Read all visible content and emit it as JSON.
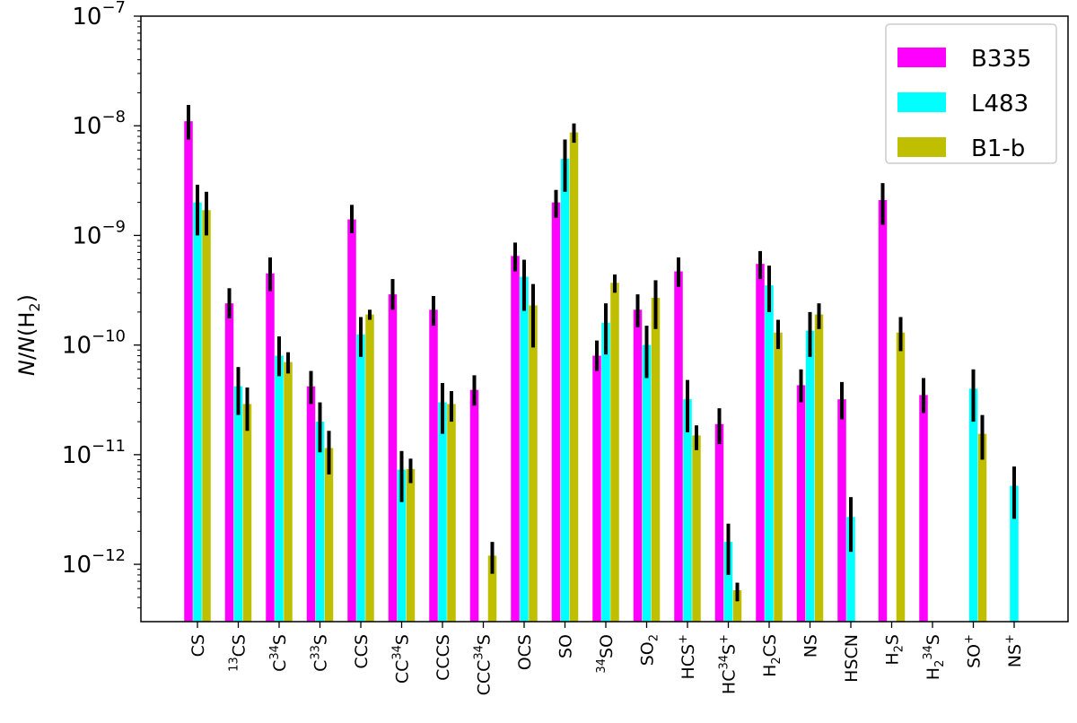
{
  "chart_data": {
    "type": "bar",
    "yscale": "log",
    "ylim": [
      3e-13,
      1e-07
    ],
    "ylabel_parts": [
      {
        "text": "N",
        "style": "italic"
      },
      {
        "text": "/"
      },
      {
        "text": "N",
        "style": "italic"
      },
      {
        "text": "(H"
      },
      {
        "text": "2",
        "shift": "sub"
      },
      {
        "text": ")"
      }
    ],
    "yticks": [
      {
        "value": 1e-12,
        "base": "10",
        "exp": "−12"
      },
      {
        "value": 1e-11,
        "base": "10",
        "exp": "−11"
      },
      {
        "value": 1e-10,
        "base": "10",
        "exp": "−10"
      },
      {
        "value": 1e-09,
        "base": "10",
        "exp": "−9"
      },
      {
        "value": 1e-08,
        "base": "10",
        "exp": "−8"
      },
      {
        "value": 1e-07,
        "base": "10",
        "exp": "−7"
      }
    ],
    "categories": [
      {
        "parts": [
          {
            "text": "CS"
          }
        ]
      },
      {
        "parts": [
          {
            "text": "13",
            "shift": "super"
          },
          {
            "text": "CS"
          }
        ]
      },
      {
        "parts": [
          {
            "text": "C"
          },
          {
            "text": "34",
            "shift": "super"
          },
          {
            "text": "S"
          }
        ]
      },
      {
        "parts": [
          {
            "text": "C"
          },
          {
            "text": "33",
            "shift": "super"
          },
          {
            "text": "S"
          }
        ]
      },
      {
        "parts": [
          {
            "text": "CCS"
          }
        ]
      },
      {
        "parts": [
          {
            "text": "CC"
          },
          {
            "text": "34",
            "shift": "super"
          },
          {
            "text": "S"
          }
        ]
      },
      {
        "parts": [
          {
            "text": "CCCS"
          }
        ]
      },
      {
        "parts": [
          {
            "text": "CCC"
          },
          {
            "text": "34",
            "shift": "super"
          },
          {
            "text": "S"
          }
        ]
      },
      {
        "parts": [
          {
            "text": "OCS"
          }
        ]
      },
      {
        "parts": [
          {
            "text": "SO"
          }
        ]
      },
      {
        "parts": [
          {
            "text": "34",
            "shift": "super"
          },
          {
            "text": "SO"
          }
        ]
      },
      {
        "parts": [
          {
            "text": "SO"
          },
          {
            "text": "2",
            "shift": "sub"
          }
        ]
      },
      {
        "parts": [
          {
            "text": "HCS"
          },
          {
            "text": "+",
            "shift": "super"
          }
        ]
      },
      {
        "parts": [
          {
            "text": "HC"
          },
          {
            "text": "34",
            "shift": "super"
          },
          {
            "text": "S"
          },
          {
            "text": "+",
            "shift": "super"
          }
        ]
      },
      {
        "parts": [
          {
            "text": "H"
          },
          {
            "text": "2",
            "shift": "sub"
          },
          {
            "text": "CS"
          }
        ]
      },
      {
        "parts": [
          {
            "text": "NS"
          }
        ]
      },
      {
        "parts": [
          {
            "text": "HSCN"
          }
        ]
      },
      {
        "parts": [
          {
            "text": "H"
          },
          {
            "text": "2",
            "shift": "sub"
          },
          {
            "text": "S"
          }
        ]
      },
      {
        "parts": [
          {
            "text": "H"
          },
          {
            "text": "2",
            "shift": "sub"
          },
          {
            "text": "34",
            "shift": "super"
          },
          {
            "text": "S"
          }
        ]
      },
      {
        "parts": [
          {
            "text": "SO"
          },
          {
            "text": "+",
            "shift": "super"
          }
        ]
      },
      {
        "parts": [
          {
            "text": "NS"
          },
          {
            "text": "+",
            "shift": "super"
          }
        ]
      }
    ],
    "series": [
      {
        "name": "B335",
        "color": "#ff00ff",
        "values": [
          1.1e-08,
          2.4e-10,
          4.5e-10,
          4.2e-11,
          1.4e-09,
          2.9e-10,
          2.1e-10,
          3.9e-11,
          6.5e-10,
          2e-09,
          8e-11,
          2.1e-10,
          4.7e-10,
          1.9e-11,
          5.5e-10,
          4.3e-11,
          3.2e-11,
          2.1e-09,
          3.5e-11,
          null,
          null
        ],
        "err_low": [
          7.5e-09,
          1.75e-10,
          3.1e-10,
          2.9e-11,
          1.05e-09,
          2.1e-10,
          1.5e-10,
          2.8e-11,
          4.7e-10,
          1.45e-09,
          5.8e-11,
          1.45e-10,
          3.4e-10,
          1.25e-11,
          4e-10,
          3e-11,
          2.1e-11,
          1.25e-09,
          2.4e-11,
          null,
          null
        ],
        "err_high": [
          1.55e-08,
          3.3e-10,
          6.3e-10,
          5.8e-11,
          1.9e-09,
          4e-10,
          2.8e-10,
          5.3e-11,
          8.6e-10,
          2.6e-09,
          1.1e-10,
          2.9e-10,
          6.3e-10,
          2.65e-11,
          7.2e-10,
          6e-11,
          4.6e-11,
          3e-09,
          5e-11,
          null,
          null
        ]
      },
      {
        "name": "L483",
        "color": "#00ffff",
        "values": [
          2e-09,
          4.2e-11,
          8e-11,
          2e-11,
          1.25e-10,
          7.3e-12,
          3e-11,
          null,
          4.2e-10,
          5e-09,
          1.6e-10,
          1e-10,
          3.2e-11,
          1.6e-12,
          3.5e-10,
          1.35e-10,
          2.7e-12,
          null,
          null,
          4e-11,
          5.2e-12
        ],
        "err_low": [
          1e-09,
          2.3e-11,
          5.2e-11,
          1.05e-11,
          7.8e-11,
          3.7e-12,
          1.55e-11,
          null,
          2.05e-10,
          2.5e-09,
          8.2e-11,
          5e-11,
          1.6e-11,
          8e-13,
          2e-10,
          7.8e-11,
          1.3e-12,
          null,
          null,
          2e-11,
          2.6e-12
        ],
        "err_high": [
          2.9e-09,
          6.3e-11,
          1.2e-10,
          3e-11,
          1.8e-10,
          1.08e-11,
          4.5e-11,
          null,
          6e-10,
          7.5e-09,
          2.4e-10,
          1.5e-10,
          4.8e-11,
          2.35e-12,
          5.3e-10,
          2e-10,
          4.1e-12,
          null,
          null,
          6e-11,
          7.8e-12
        ]
      },
      {
        "name": "B1-b",
        "color": "#bfbf00",
        "values": [
          1.7e-09,
          2.9e-11,
          7e-11,
          1.15e-11,
          1.9e-10,
          7.4e-12,
          2.9e-11,
          1.2e-12,
          2.3e-10,
          8.7e-09,
          3.7e-10,
          2.7e-10,
          1.5e-11,
          5.8e-13,
          1.3e-10,
          1.9e-10,
          null,
          1.3e-10,
          null,
          1.55e-11,
          null
        ],
        "err_low": [
          1e-09,
          1.65e-11,
          5.5e-11,
          6.6e-12,
          1.7e-10,
          5.5e-12,
          2e-11,
          8.2e-13,
          9.5e-11,
          7e-09,
          3e-10,
          1.4e-10,
          1.1e-11,
          4.6e-13,
          9.2e-11,
          1.4e-10,
          null,
          8.8e-11,
          null,
          9e-12,
          null
        ],
        "err_high": [
          2.5e-09,
          4.1e-11,
          8.6e-11,
          1.65e-11,
          2.1e-10,
          9.2e-12,
          3.8e-11,
          1.6e-12,
          3.6e-10,
          1.05e-08,
          4.4e-10,
          3.9e-10,
          1.85e-11,
          6.8e-13,
          1.7e-10,
          2.4e-10,
          null,
          1.8e-10,
          null,
          2.3e-11,
          null
        ]
      }
    ],
    "legend": {
      "position": "top-right"
    },
    "grid": false
  }
}
